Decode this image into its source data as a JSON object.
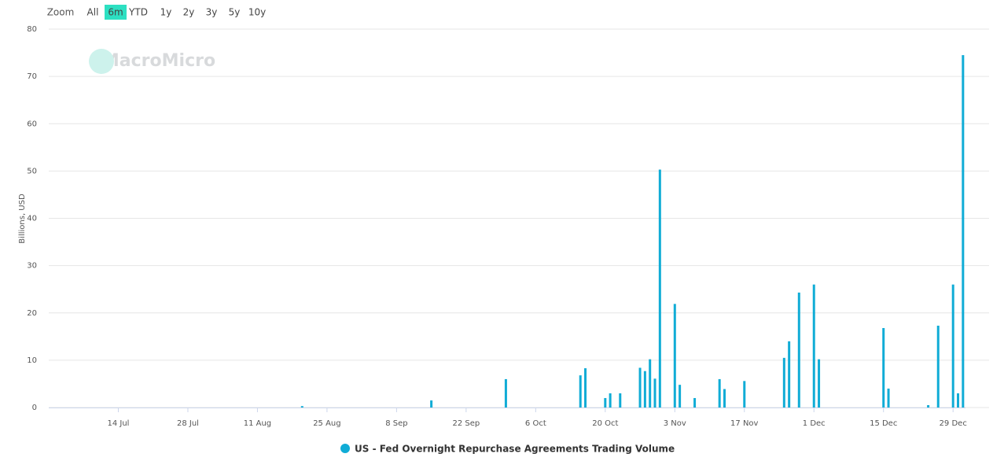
{
  "range_selector": {
    "label": "Zoom",
    "buttons": [
      "All",
      "6m",
      "YTD",
      "1y",
      "2y",
      "3y",
      "5y",
      "10y"
    ],
    "selected": 1
  },
  "watermark": "MacroMicro",
  "chart_data": {
    "type": "bar",
    "y_label": "Billions, USD",
    "x": [
      "08-20",
      "09-15",
      "09-30",
      "10-15",
      "10-16",
      "10-20",
      "10-21",
      "10-23",
      "10-27",
      "10-28",
      "10-29",
      "10-30",
      "10-31",
      "11-03",
      "11-04",
      "11-07",
      "11-12",
      "11-13",
      "11-17",
      "11-25",
      "11-26",
      "11-28",
      "12-01",
      "12-02",
      "12-15",
      "12-16",
      "12-24",
      "12-26",
      "12-29",
      "12-30",
      "12-31"
    ],
    "series": [
      {
        "name": "US - Fed Overnight Repurchase Agreements Trading Volume",
        "color": "#10acd6",
        "values": [
          0.3,
          1.5,
          6,
          6.8,
          8.3,
          2,
          3,
          3,
          8.4,
          7.7,
          10.2,
          6.1,
          50.3,
          21.9,
          4.8,
          2,
          6,
          3.9,
          5.6,
          10.5,
          14,
          24.3,
          26,
          10.2,
          16.8,
          4,
          0.5,
          17.3,
          26,
          3,
          74.5
        ]
      }
    ],
    "xlim": [
      "06-30",
      "12-31"
    ],
    "xticks": [
      {
        "value": "07-14",
        "label": "14 Jul"
      },
      {
        "value": "07-28",
        "label": "28 Jul"
      },
      {
        "value": "08-11",
        "label": "11 Aug"
      },
      {
        "value": "08-25",
        "label": "25 Aug"
      },
      {
        "value": "09-08",
        "label": "8 Sep"
      },
      {
        "value": "09-22",
        "label": "22 Sep"
      },
      {
        "value": "10-06",
        "label": "6 Oct"
      },
      {
        "value": "10-20",
        "label": "20 Oct"
      },
      {
        "value": "11-03",
        "label": "3 Nov"
      },
      {
        "value": "11-17",
        "label": "17 Nov"
      },
      {
        "value": "12-01",
        "label": "1 Dec"
      },
      {
        "value": "12-15",
        "label": "15 Dec"
      },
      {
        "value": "12-29",
        "label": "29 Dec"
      }
    ],
    "ylim": [
      0,
      80
    ],
    "yticks": [
      0,
      10,
      20,
      30,
      40,
      50,
      60,
      70,
      80
    ],
    "grid": true
  }
}
